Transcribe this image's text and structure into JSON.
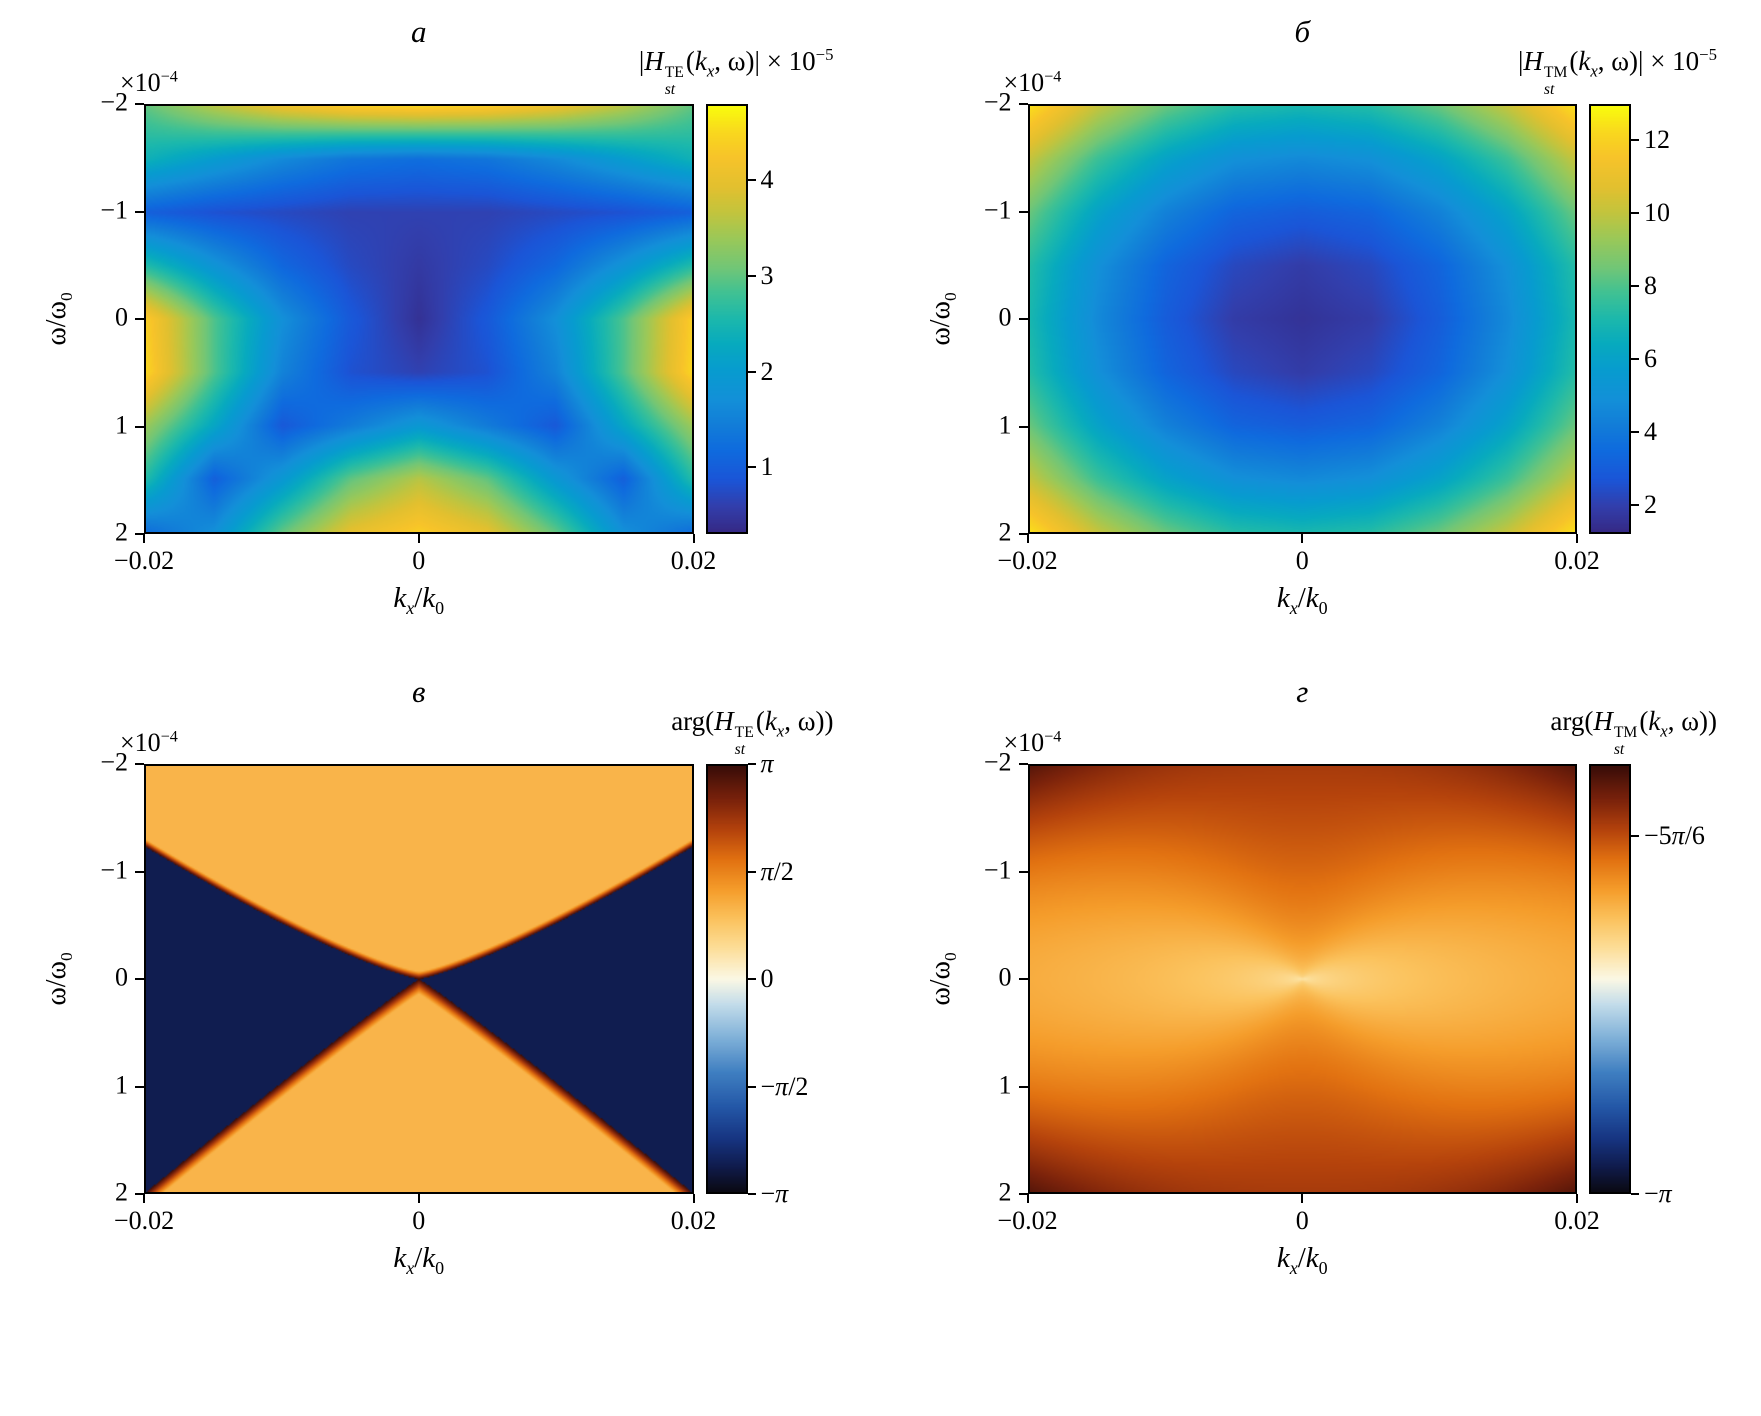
{
  "figure": {
    "background": "#ffffff"
  },
  "colormaps": {
    "parula": [
      [
        0.0,
        "#352a87"
      ],
      [
        0.06,
        "#323fad"
      ],
      [
        0.12,
        "#1b55d7"
      ],
      [
        0.19,
        "#0f6bde"
      ],
      [
        0.25,
        "#127dd8"
      ],
      [
        0.31,
        "#1390d8"
      ],
      [
        0.38,
        "#079ccf"
      ],
      [
        0.44,
        "#07aabf"
      ],
      [
        0.5,
        "#1cb8ac"
      ],
      [
        0.56,
        "#3fc194"
      ],
      [
        0.62,
        "#71c677"
      ],
      [
        0.69,
        "#9bc858"
      ],
      [
        0.75,
        "#c2c43e"
      ],
      [
        0.81,
        "#e2c02f"
      ],
      [
        0.88,
        "#f7c32a"
      ],
      [
        0.94,
        "#f9d81e"
      ],
      [
        1.0,
        "#f9fb0e"
      ]
    ],
    "phase": [
      [
        0.0,
        "#0a0a14"
      ],
      [
        0.06,
        "#101c4e"
      ],
      [
        0.12,
        "#16337f"
      ],
      [
        0.2,
        "#2458a8"
      ],
      [
        0.28,
        "#3f7fc1"
      ],
      [
        0.36,
        "#7fb0d8"
      ],
      [
        0.44,
        "#c3dcea"
      ],
      [
        0.5,
        "#fbf8e4"
      ],
      [
        0.57,
        "#fcdf9b"
      ],
      [
        0.64,
        "#fbc35e"
      ],
      [
        0.71,
        "#f59d2b"
      ],
      [
        0.78,
        "#e27211"
      ],
      [
        0.85,
        "#b5430c"
      ],
      [
        0.92,
        "#7c230b"
      ],
      [
        1.0,
        "#3a0d08"
      ]
    ]
  },
  "chart_data": [
    {
      "type": "heatmap",
      "panel_label": "а",
      "title": "|H_st^TE(k_x, ω)| × 10⁻⁵",
      "title_html": "|<i>H</i><span class='supsub'><span>TE</span><span><i>st</i></span></span>(<i>k<sub>x</sub></i>, ω)| × 10<sup>−5</sup>",
      "y_scale_note": "×10⁻⁴",
      "y_scale_html": "×10<sup>−4</sup>",
      "xlabel": "k_x/k_0",
      "xlabel_html": "<i>k<sub>x</sub></i>/<i>k</i><sub>0</sub>",
      "ylabel": "ω/ω_0",
      "ylabel_html": "ω/ω<sub>0</sub>",
      "xlim": [
        -0.02,
        0.02
      ],
      "ylim_top_to_bottom": [
        -2,
        2
      ],
      "omega_units": "1e-4",
      "xticks": {
        "values": [
          -0.02,
          0,
          0.02
        ],
        "labels": [
          "−0.02",
          "0",
          "0.02"
        ]
      },
      "yticks": {
        "values": [
          -2,
          -1,
          0,
          1,
          2
        ],
        "labels": [
          "−2",
          "−1",
          "0",
          "1",
          "2"
        ]
      },
      "colormap": "parula",
      "value_units": "1e-5",
      "vmin": 0.3,
      "vmax": 4.8,
      "colorbar": {
        "ticks": {
          "values": [
            1,
            2,
            3,
            4
          ],
          "labels_html": [
            "1",
            "2",
            "3",
            "4"
          ]
        }
      },
      "model": {
        "kind": "grid",
        "grid_kx": [
          -0.02,
          -0.015,
          -0.01,
          -0.005,
          0,
          0.005,
          0.01,
          0.015,
          0.02
        ],
        "grid_omega": [
          -2,
          -1.5,
          -1,
          -0.5,
          0,
          0.5,
          1,
          1.5,
          2
        ],
        "values": [
          [
            3.0,
            3.6,
            4.1,
            4.4,
            4.5,
            4.4,
            4.1,
            3.6,
            3.0
          ],
          [
            2.4,
            2.0,
            1.6,
            1.3,
            1.2,
            1.3,
            1.6,
            2.0,
            2.4
          ],
          [
            1.0,
            0.8,
            0.7,
            0.6,
            0.6,
            0.6,
            0.7,
            0.8,
            1.0
          ],
          [
            2.6,
            1.8,
            1.1,
            0.7,
            0.5,
            0.7,
            1.1,
            1.8,
            2.6
          ],
          [
            4.4,
            2.9,
            1.7,
            0.9,
            0.4,
            0.9,
            1.7,
            2.9,
            4.4
          ],
          [
            4.5,
            2.9,
            1.5,
            0.8,
            0.6,
            0.8,
            1.5,
            2.9,
            4.5
          ],
          [
            3.4,
            2.2,
            0.9,
            1.4,
            1.9,
            1.4,
            0.9,
            2.2,
            3.4
          ],
          [
            2.6,
            1.0,
            1.9,
            3.0,
            3.6,
            3.0,
            1.9,
            1.0,
            2.6
          ],
          [
            1.2,
            1.7,
            3.0,
            4.0,
            4.4,
            4.0,
            3.0,
            1.7,
            1.2
          ]
        ]
      }
    },
    {
      "type": "heatmap",
      "panel_label": "б",
      "title": "|H_st^TM(k_x, ω)| × 10⁻⁵",
      "title_html": "|<i>H</i><span class='supsub'><span>TM</span><span><i>st</i></span></span>(<i>k<sub>x</sub></i>, ω)| × 10<sup>−5</sup>",
      "y_scale_note": "×10⁻⁴",
      "y_scale_html": "×10<sup>−4</sup>",
      "xlabel": "k_x/k_0",
      "xlabel_html": "<i>k<sub>x</sub></i>/<i>k</i><sub>0</sub>",
      "ylabel": "ω/ω_0",
      "ylabel_html": "ω/ω<sub>0</sub>",
      "xlim": [
        -0.02,
        0.02
      ],
      "ylim_top_to_bottom": [
        -2,
        2
      ],
      "omega_units": "1e-4",
      "xticks": {
        "values": [
          -0.02,
          0,
          0.02
        ],
        "labels": [
          "−0.02",
          "0",
          "0.02"
        ]
      },
      "yticks": {
        "values": [
          -2,
          -1,
          0,
          1,
          2
        ],
        "labels": [
          "−2",
          "−1",
          "0",
          "1",
          "2"
        ]
      },
      "colormap": "parula",
      "value_units": "1e-5",
      "vmin": 1.2,
      "vmax": 13.0,
      "colorbar": {
        "ticks": {
          "values": [
            2,
            4,
            6,
            8,
            10,
            12
          ],
          "labels_html": [
            "2",
            "4",
            "6",
            "8",
            "10",
            "12"
          ]
        }
      },
      "model": {
        "kind": "grid",
        "grid_kx": [
          -0.02,
          -0.015,
          -0.01,
          -0.005,
          0,
          0.005,
          0.01,
          0.015,
          0.02
        ],
        "grid_omega": [
          -2,
          -1.5,
          -1,
          -0.5,
          0,
          0.5,
          1,
          1.5,
          2
        ],
        "values": [
          [
            12.5,
            10.1,
            8.4,
            7.3,
            7.0,
            7.3,
            8.4,
            10.1,
            12.5
          ],
          [
            10.1,
            7.7,
            6.0,
            4.9,
            4.6,
            4.9,
            6.0,
            7.7,
            10.1
          ],
          [
            8.4,
            6.0,
            4.3,
            3.2,
            2.9,
            3.2,
            4.3,
            6.0,
            8.4
          ],
          [
            7.3,
            4.9,
            3.2,
            2.2,
            1.8,
            2.2,
            3.2,
            4.9,
            7.3
          ],
          [
            7.0,
            4.6,
            2.9,
            1.8,
            1.5,
            1.8,
            2.9,
            4.6,
            7.0
          ],
          [
            7.3,
            4.9,
            3.2,
            2.2,
            1.8,
            2.2,
            3.2,
            4.9,
            7.3
          ],
          [
            8.4,
            6.0,
            4.3,
            3.2,
            2.9,
            3.2,
            4.3,
            6.0,
            8.4
          ],
          [
            10.1,
            7.7,
            6.0,
            4.9,
            4.6,
            4.9,
            6.0,
            7.7,
            10.1
          ],
          [
            12.5,
            10.1,
            8.4,
            7.3,
            7.0,
            7.3,
            8.4,
            10.1,
            12.5
          ]
        ]
      }
    },
    {
      "type": "heatmap",
      "panel_label": "в",
      "title": "arg(H_st^TE(k_x, ω))",
      "title_html": "arg(<i>H</i><span class='supsub'><span>TE</span><span><i>st</i></span></span>(<i>k<sub>x</sub></i>, ω))",
      "y_scale_note": "×10⁻⁴",
      "y_scale_html": "×10<sup>−4</sup>",
      "xlabel": "k_x/k_0",
      "xlabel_html": "<i>k<sub>x</sub></i>/<i>k</i><sub>0</sub>",
      "ylabel": "ω/ω_0",
      "ylabel_html": "ω/ω<sub>0</sub>",
      "xlim": [
        -0.02,
        0.02
      ],
      "ylim_top_to_bottom": [
        -2,
        2
      ],
      "omega_units": "1e-4",
      "xticks": {
        "values": [
          -0.02,
          0,
          0.02
        ],
        "labels": [
          "−0.02",
          "0",
          "0.02"
        ]
      },
      "yticks": {
        "values": [
          -2,
          -1,
          0,
          1,
          2
        ],
        "labels": [
          "−2",
          "−1",
          "0",
          "1",
          "2"
        ]
      },
      "colormap": "phase",
      "value_units": "rad",
      "vmin": -3.1416,
      "vmax": 3.1416,
      "colorbar": {
        "ticks": {
          "values": [
            3.1416,
            1.5708,
            0,
            -1.5708,
            -3.1416
          ],
          "labels_html": [
            "<i>π</i>",
            "<i>π</i>/2",
            "0",
            "−<i>π</i>/2",
            "−<i>π</i>"
          ]
        }
      },
      "model": {
        "kind": "phase_te",
        "top_slope": 0.62,
        "top_curve": 1.25,
        "bottom_slope": 1.0,
        "bottom_curve": 1.05,
        "band_top": 0.035,
        "band_bottom": 0.07,
        "phase_top": 1.05,
        "phase_bottom": 1.05,
        "phase_sides": -2.75
      }
    },
    {
      "type": "heatmap",
      "panel_label": "г",
      "title": "arg(H_st^TM(k_x, ω))",
      "title_html": "arg(<i>H</i><span class='supsub'><span>TM</span><span><i>st</i></span></span>(<i>k<sub>x</sub></i>, ω))",
      "y_scale_note": "×10⁻⁴",
      "y_scale_html": "×10<sup>−4</sup>",
      "xlabel": "k_x/k_0",
      "xlabel_html": "<i>k<sub>x</sub></i>/<i>k</i><sub>0</sub>",
      "ylabel": "ω/ω_0",
      "ylabel_html": "ω/ω<sub>0</sub>",
      "xlim": [
        -0.02,
        0.02
      ],
      "ylim_top_to_bottom": [
        -2,
        2
      ],
      "omega_units": "1e-4",
      "xticks": {
        "values": [
          -0.02,
          0,
          0.02
        ],
        "labels": [
          "−0.02",
          "0",
          "0.02"
        ]
      },
      "yticks": {
        "values": [
          -2,
          -1,
          0,
          1,
          2
        ],
        "labels": [
          "−2",
          "−1",
          "0",
          "1",
          "2"
        ]
      },
      "colormap": "phase",
      "value_units": "rad",
      "vmin": -3.1416,
      "vmax": -2.5133,
      "colorbar": {
        "ticks": {
          "values": [
            -2.618,
            -3.1416
          ],
          "labels_html": [
            "−5<i>π</i>/6",
            "−<i>π</i>"
          ]
        }
      },
      "model": {
        "kind": "phase_tm",
        "center_level": 0.53,
        "amplitude": 0.38,
        "radial_power": 0.35,
        "anisotropy": 0.55,
        "corner_boost": 0.16
      }
    }
  ]
}
